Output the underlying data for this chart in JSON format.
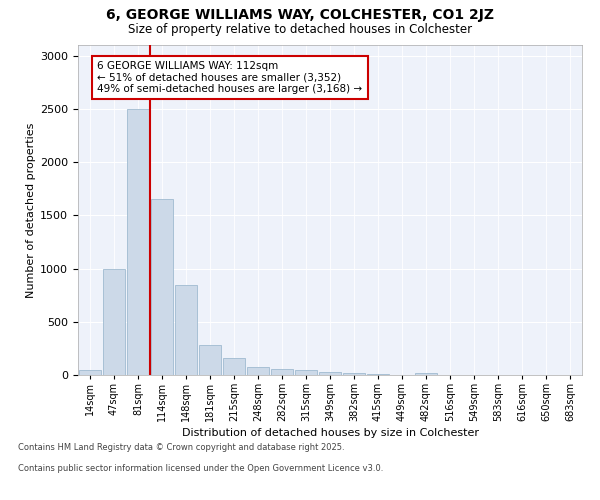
{
  "title": "6, GEORGE WILLIAMS WAY, COLCHESTER, CO1 2JZ",
  "subtitle": "Size of property relative to detached houses in Colchester",
  "xlabel": "Distribution of detached houses by size in Colchester",
  "ylabel": "Number of detached properties",
  "bar_color": "#ccd9e8",
  "bar_edge_color": "#a0bad0",
  "background_color": "#eef2fa",
  "categories": [
    "14sqm",
    "47sqm",
    "81sqm",
    "114sqm",
    "148sqm",
    "181sqm",
    "215sqm",
    "248sqm",
    "282sqm",
    "315sqm",
    "349sqm",
    "382sqm",
    "415sqm",
    "449sqm",
    "482sqm",
    "516sqm",
    "549sqm",
    "583sqm",
    "616sqm",
    "650sqm",
    "683sqm"
  ],
  "values": [
    50,
    1000,
    2500,
    1650,
    850,
    280,
    160,
    75,
    60,
    50,
    30,
    15,
    5,
    0,
    20,
    0,
    0,
    0,
    0,
    0,
    0
  ],
  "ylim": [
    0,
    3100
  ],
  "yticks": [
    0,
    500,
    1000,
    1500,
    2000,
    2500,
    3000
  ],
  "vline_color": "#cc0000",
  "vline_pos": 2.5,
  "annotation_text": "6 GEORGE WILLIAMS WAY: 112sqm\n← 51% of detached houses are smaller (3,352)\n49% of semi-detached houses are larger (3,168) →",
  "footer_line1": "Contains HM Land Registry data © Crown copyright and database right 2025.",
  "footer_line2": "Contains public sector information licensed under the Open Government Licence v3.0.",
  "figsize": [
    6.0,
    5.0
  ],
  "dpi": 100
}
